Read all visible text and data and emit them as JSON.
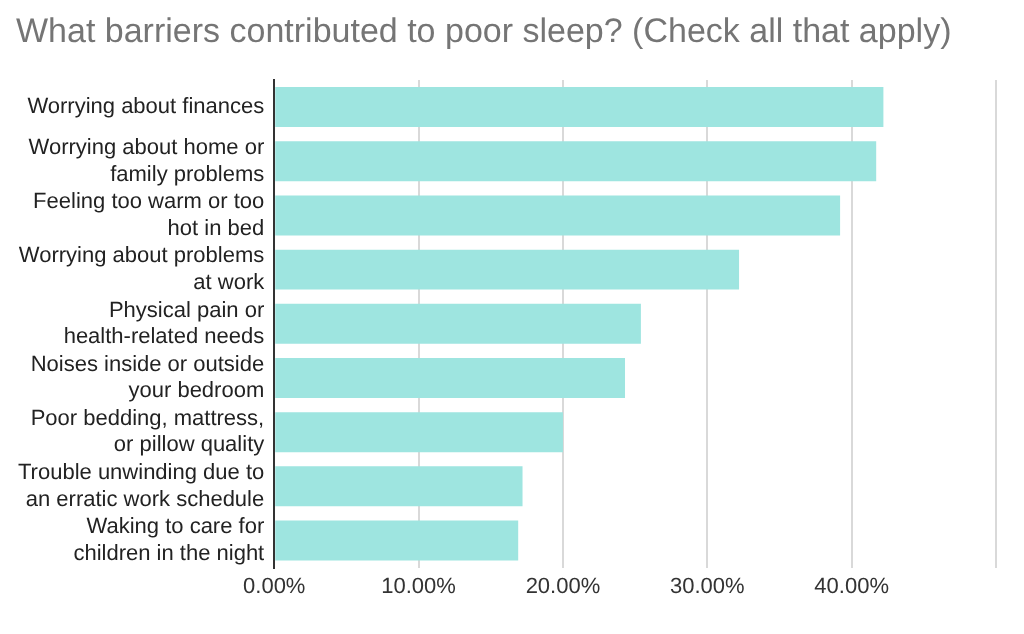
{
  "chart_data": {
    "type": "bar",
    "orientation": "horizontal",
    "title": "What barriers contributed to poor sleep? (Check all that apply)",
    "categories": [
      "Worrying about finances",
      "Worrying about home or family problems",
      "Feeling too warm or too hot in bed",
      "Worrying about problems at work",
      "Physical pain or health-related needs",
      "Noises inside or outside your bedroom",
      "Poor bedding, mattress, or pillow quality",
      "Trouble unwinding due to an erratic work schedule",
      "Waking to care for children in the night"
    ],
    "values": [
      42.2,
      41.7,
      39.2,
      32.2,
      25.4,
      24.3,
      20.0,
      17.2,
      16.9
    ],
    "color": "#9ee5e0",
    "xlim": [
      0,
      50
    ],
    "xticks": [
      {
        "value": 0,
        "label": "0.00%"
      },
      {
        "value": 10,
        "label": "10.00%"
      },
      {
        "value": 20,
        "label": "20.00%"
      },
      {
        "value": 30,
        "label": "30.00%"
      },
      {
        "value": 40,
        "label": "40.00%"
      },
      {
        "value": 50,
        "label": null
      }
    ],
    "grid": "x",
    "legend": false
  }
}
